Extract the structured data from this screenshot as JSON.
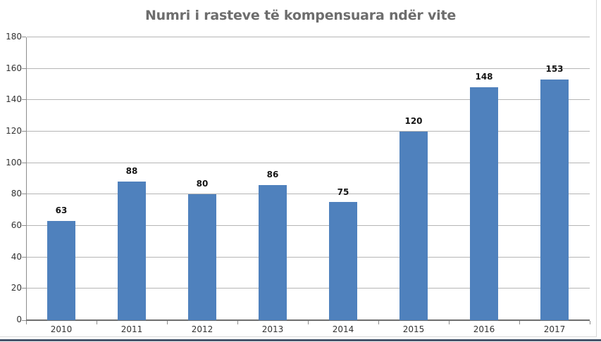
{
  "chart_data": {
    "type": "bar",
    "title": "Numri i rasteve të kompensuara ndër vite",
    "categories": [
      "2010",
      "2011",
      "2012",
      "2013",
      "2014",
      "2015",
      "2016",
      "2017"
    ],
    "values": [
      63,
      88,
      80,
      86,
      75,
      120,
      148,
      153
    ],
    "xlabel": "",
    "ylabel": "",
    "ylim": [
      0,
      180
    ],
    "yticks": [
      0,
      20,
      40,
      60,
      80,
      100,
      120,
      140,
      160,
      180
    ],
    "grid": true,
    "legend_position": "none",
    "data_labels_shown": true,
    "colors": {
      "bar_fill": "#4f81bd",
      "gridline": "#b5b5b5",
      "axis_line": "#6e6e6e",
      "title_text": "#6d6d6d",
      "tick_label_text": "#333333",
      "data_label_text": "#151515",
      "bottom_edge": "#44546a",
      "background": "#ffffff"
    }
  }
}
